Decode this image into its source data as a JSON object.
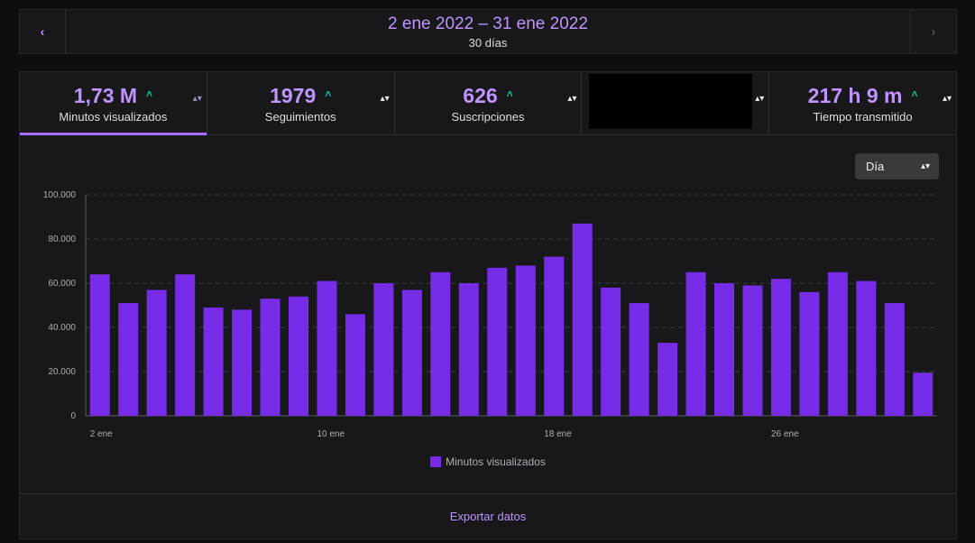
{
  "date_nav": {
    "prev_icon": "chevron-left-icon",
    "next_icon": "chevron-right-icon",
    "prev_glyph": "‹",
    "next_glyph": "›",
    "range": "2 ene 2022 – 31 ene 2022",
    "days": "30 días"
  },
  "stats": [
    {
      "value": "1,73 M",
      "label": "Minutos visualizados",
      "trend": "up",
      "active": true
    },
    {
      "value": "1979",
      "label": "Seguimientos",
      "trend": "up",
      "active": false
    },
    {
      "value": "626",
      "label": "Suscripciones",
      "trend": "up",
      "active": false
    },
    {
      "value": "",
      "label": "",
      "trend": "",
      "redacted": true,
      "active": false
    },
    {
      "value": "217 h 9 m",
      "label": "Tiempo transmitido",
      "trend": "up",
      "active": false
    }
  ],
  "symbols": {
    "trend_up": "˄",
    "sort": "▴▾"
  },
  "granularity": {
    "selected": "Día"
  },
  "colors": {
    "accent": "#bf94ff",
    "bar": "#772ce8",
    "trend_up": "#00c6a2"
  },
  "chart_data": {
    "type": "bar",
    "title": "",
    "categories": [
      "2 ene",
      "3 ene",
      "4 ene",
      "5 ene",
      "6 ene",
      "7 ene",
      "8 ene",
      "9 ene",
      "10 ene",
      "11 ene",
      "12 ene",
      "13 ene",
      "14 ene",
      "15 ene",
      "16 ene",
      "17 ene",
      "18 ene",
      "19 ene",
      "20 ene",
      "21 ene",
      "22 ene",
      "23 ene",
      "24 ene",
      "25 ene",
      "26 ene",
      "27 ene",
      "28 ene",
      "29 ene",
      "30 ene",
      "31 ene"
    ],
    "x_tick_labels": [
      "2 ene",
      "10 ene",
      "18 ene",
      "26 ene"
    ],
    "series": [
      {
        "name": "Minutos visualizados",
        "values": [
          64000,
          51000,
          57000,
          64000,
          49000,
          48000,
          53000,
          54000,
          61000,
          46000,
          60000,
          57000,
          65000,
          60000,
          67000,
          68000,
          72000,
          87000,
          58000,
          51000,
          33000,
          65000,
          60000,
          59000,
          62000,
          56000,
          65000,
          61000,
          51000,
          19500
        ]
      }
    ],
    "ylim": [
      0,
      100000
    ],
    "y_ticks": [
      "0",
      "20.000",
      "40.000",
      "60.000",
      "80.000",
      "100.000"
    ],
    "grid": true,
    "legend": "bottom-center"
  },
  "export_label": "Exportar datos"
}
